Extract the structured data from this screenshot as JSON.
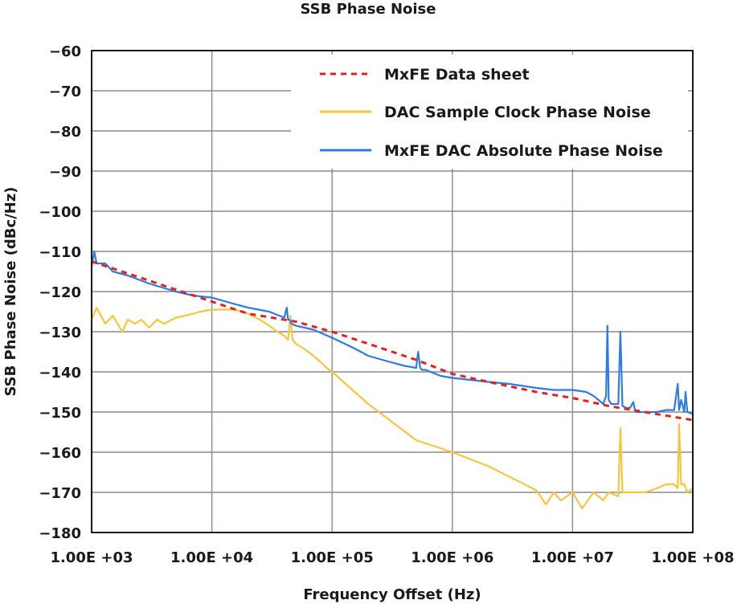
{
  "chart_data": {
    "type": "line",
    "title": "SSB Phase Noise",
    "xlabel": "Frequency Offset (Hz)",
    "ylabel": "SSB Phase Noise (dBc/Hz)",
    "x_scale": "log",
    "xlim": [
      1000,
      100000000
    ],
    "ylim": [
      -180,
      -60
    ],
    "x_ticks": [
      {
        "value": 1000,
        "label": "1.00E +03"
      },
      {
        "value": 10000,
        "label": "1.00E +04"
      },
      {
        "value": 100000,
        "label": "1.00E +05"
      },
      {
        "value": 1000000,
        "label": "1.00E +06"
      },
      {
        "value": 10000000,
        "label": "1.00E +07"
      },
      {
        "value": 100000000,
        "label": "1.00E +08"
      }
    ],
    "y_ticks": [
      {
        "value": -60,
        "label": "−60"
      },
      {
        "value": -70,
        "label": "−70"
      },
      {
        "value": -80,
        "label": "−80"
      },
      {
        "value": -90,
        "label": "−90"
      },
      {
        "value": -100,
        "label": "−100"
      },
      {
        "value": -110,
        "label": "−110"
      },
      {
        "value": -120,
        "label": "−120"
      },
      {
        "value": -130,
        "label": "−130"
      },
      {
        "value": -140,
        "label": "−140"
      },
      {
        "value": -150,
        "label": "−150"
      },
      {
        "value": -160,
        "label": "−160"
      },
      {
        "value": -170,
        "label": "−170"
      },
      {
        "value": -180,
        "label": "−180"
      }
    ],
    "grid": true,
    "legend_position": "top-right",
    "series": [
      {
        "name": "MxFE Data sheet",
        "color": "#e8201c",
        "style": "dashed",
        "x": [
          1000,
          2000,
          5000,
          10000,
          20000,
          50000,
          100000,
          200000,
          500000,
          1000000,
          2000000,
          5000000,
          10000000,
          20000000,
          50000000,
          100000000
        ],
        "y": [
          -112.5,
          -115.5,
          -119.5,
          -122.5,
          -125.5,
          -127.5,
          -130,
          -133,
          -137,
          -140.5,
          -142.5,
          -145,
          -146.5,
          -148.5,
          -150.5,
          -152
        ]
      },
      {
        "name": "DAC Sample Clock Phase Noise",
        "color": "#f8c53a",
        "style": "solid",
        "x": [
          1000,
          1100,
          1300,
          1500,
          1800,
          2000,
          2300,
          2600,
          3000,
          3500,
          4000,
          5000,
          6000,
          7000,
          8000,
          10000,
          12000,
          15000,
          18000,
          20000,
          25000,
          30000,
          35000,
          40000,
          43000,
          45000,
          47000,
          50000,
          60000,
          70000,
          80000,
          90000,
          100000,
          200000,
          500000,
          1000000,
          2000000,
          5000000,
          6000000,
          7000000,
          8000000,
          10000000,
          12000000,
          15000000,
          18000000,
          20000000,
          24000000,
          25000000,
          26000000,
          30000000,
          40000000,
          50000000,
          60000000,
          70000000,
          75000000,
          77000000,
          80000000,
          85000000,
          90000000,
          100000000
        ],
        "y": [
          -127,
          -124,
          -128,
          -126,
          -130,
          -127,
          -128,
          -127,
          -129,
          -127,
          -128,
          -126.5,
          -126,
          -125.5,
          -125,
          -124.5,
          -124.5,
          -124.5,
          -125,
          -125.5,
          -127,
          -128.5,
          -130,
          -131,
          -132,
          -126,
          -132,
          -133,
          -134.5,
          -136,
          -137.5,
          -139,
          -140,
          -148,
          -157,
          -160,
          -163.5,
          -169.5,
          -173,
          -170,
          -172,
          -170,
          -174,
          -170,
          -172,
          -170,
          -171,
          -154,
          -170,
          -170,
          -170,
          -169,
          -168,
          -168,
          -169,
          -153,
          -168,
          -168,
          -170,
          -169
        ]
      },
      {
        "name": "MxFE DAC Absolute Phase Noise",
        "color": "#2e7ae6",
        "style": "solid",
        "x": [
          1000,
          1050,
          1100,
          1300,
          1500,
          2000,
          3000,
          5000,
          7000,
          10000,
          15000,
          20000,
          30000,
          40000,
          42000,
          43000,
          44000,
          46000,
          50000,
          70000,
          100000,
          150000,
          200000,
          300000,
          400000,
          500000,
          520000,
          540000,
          560000,
          600000,
          800000,
          1000000,
          2000000,
          3000000,
          5000000,
          7000000,
          10000000,
          13000000,
          15000000,
          18000000,
          19000000,
          19500000,
          20000000,
          21000000,
          24000000,
          25000000,
          26000000,
          28000000,
          30000000,
          32000000,
          33000000,
          34000000,
          40000000,
          50000000,
          60000000,
          70000000,
          75000000,
          77000000,
          80000000,
          85000000,
          87000000,
          90000000,
          100000000
        ],
        "y": [
          -114,
          -110,
          -113,
          -113,
          -115,
          -116,
          -118,
          -120,
          -121,
          -121.5,
          -123,
          -124,
          -125,
          -126.5,
          -124,
          -127,
          -127,
          -128,
          -128.5,
          -129.5,
          -131.5,
          -134,
          -136,
          -137.5,
          -138.5,
          -139,
          -135,
          -139,
          -139.5,
          -139.5,
          -141,
          -141.5,
          -142.5,
          -143,
          -144,
          -144.5,
          -144.5,
          -145,
          -146,
          -148,
          -146,
          -128.5,
          -147,
          -148,
          -148,
          -130,
          -148.5,
          -149,
          -149,
          -147.5,
          -149.5,
          -150,
          -150,
          -150,
          -149.5,
          -149.5,
          -143,
          -149.5,
          -147,
          -150,
          -145,
          -150,
          -150.5
        ]
      }
    ]
  }
}
